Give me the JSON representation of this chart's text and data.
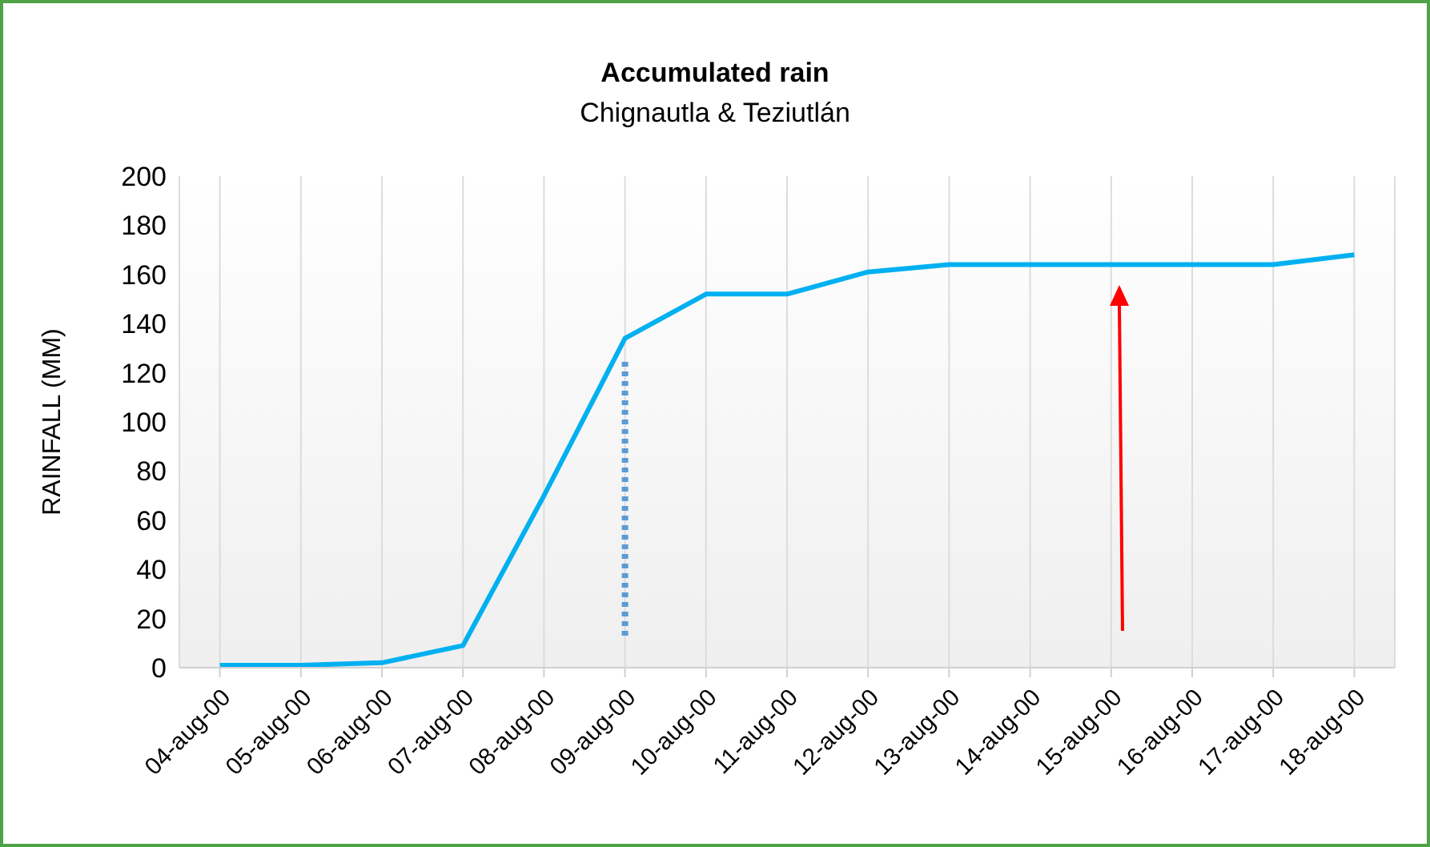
{
  "chart_data": {
    "type": "line",
    "title": "Accumulated rain",
    "subtitle": "Chignautla & Teziutlán",
    "ylabel": "RAINFALL (MM)",
    "categories": [
      "04-aug-00",
      "05-aug-00",
      "06-aug-00",
      "07-aug-00",
      "08-aug-00",
      "09-aug-00",
      "10-aug-00",
      "11-aug-00",
      "12-aug-00",
      "13-aug-00",
      "14-aug-00",
      "15-aug-00",
      "16-aug-00",
      "17-aug-00",
      "18-aug-00"
    ],
    "series": [
      {
        "color": "#00b0f0",
        "values": [
          1,
          1,
          2,
          9,
          70,
          134,
          152,
          152,
          161,
          164,
          164,
          164,
          164,
          164,
          168
        ]
      },
      {
        "type": "line",
        "color": "#5b9bd5",
        "line_style": "dotted",
        "x": [
          "09-aug-00",
          "09-aug-00"
        ],
        "values": [
          13,
          125
        ]
      }
    ],
    "ylim": [
      0,
      200
    ],
    "yticks": [
      0,
      20,
      40,
      60,
      80,
      100,
      120,
      140,
      160,
      180,
      200
    ],
    "grid": "x",
    "marker": "none"
  }
}
